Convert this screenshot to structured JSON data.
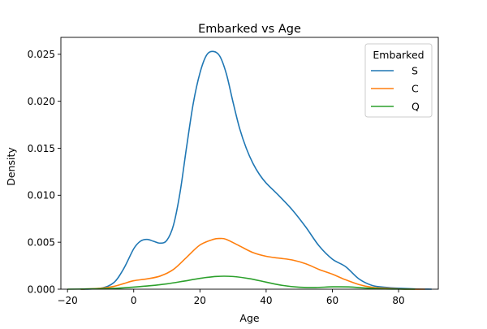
{
  "chart_data": {
    "type": "line",
    "title": "Embarked vs Age",
    "xlabel": "Age",
    "ylabel": "Density",
    "xlim": [
      -22,
      92
    ],
    "ylim": [
      0,
      0.0268
    ],
    "xticks": [
      {
        "value": -20,
        "label": "−20"
      },
      {
        "value": 0,
        "label": "0"
      },
      {
        "value": 20,
        "label": "20"
      },
      {
        "value": 40,
        "label": "40"
      },
      {
        "value": 60,
        "label": "60"
      },
      {
        "value": 80,
        "label": "80"
      }
    ],
    "yticks": [
      {
        "value": 0,
        "label": "0.000"
      },
      {
        "value": 0.005,
        "label": "0.005"
      },
      {
        "value": 0.01,
        "label": "0.010"
      },
      {
        "value": 0.015,
        "label": "0.015"
      },
      {
        "value": 0.02,
        "label": "0.020"
      },
      {
        "value": 0.025,
        "label": "0.025"
      }
    ],
    "grid": false,
    "legend": {
      "title": "Embarked",
      "placement": "top-right"
    },
    "series": [
      {
        "name": "S",
        "color": "#1f77b4",
        "x": [
          -16,
          -10,
          -6,
          -3,
          0,
          2,
          4,
          6,
          8,
          10,
          12,
          14,
          16,
          18,
          20,
          22,
          24,
          26,
          28,
          30,
          32,
          34,
          36,
          38,
          40,
          44,
          48,
          52,
          56,
          60,
          64,
          68,
          72,
          76,
          80,
          85,
          90
        ],
        "y": [
          0,
          0.0001,
          0.0007,
          0.0022,
          0.0043,
          0.0051,
          0.0053,
          0.0051,
          0.0049,
          0.0052,
          0.0068,
          0.0103,
          0.0152,
          0.0198,
          0.023,
          0.0249,
          0.0253,
          0.0248,
          0.0229,
          0.0199,
          0.0171,
          0.015,
          0.0134,
          0.0122,
          0.0113,
          0.0099,
          0.0084,
          0.0066,
          0.0046,
          0.0032,
          0.0024,
          0.0011,
          0.0004,
          0.0002,
          0.0001,
          3e-05,
          0
        ]
      },
      {
        "name": "C",
        "color": "#ff7f0e",
        "x": [
          -16,
          -10,
          -6,
          -3,
          0,
          4,
          8,
          12,
          16,
          20,
          24,
          26,
          28,
          32,
          36,
          40,
          44,
          48,
          52,
          56,
          60,
          64,
          68,
          72,
          76,
          80,
          84,
          88
        ],
        "y": [
          0,
          0.0001,
          0.0003,
          0.0006,
          0.0009,
          0.0011,
          0.0014,
          0.0021,
          0.0034,
          0.0047,
          0.0053,
          0.0054,
          0.0053,
          0.0046,
          0.0039,
          0.0035,
          0.0033,
          0.0031,
          0.0027,
          0.0021,
          0.0016,
          0.001,
          0.0005,
          0.0002,
          0.0001,
          3e-05,
          0,
          0
        ]
      },
      {
        "name": "Q",
        "color": "#2ca02c",
        "x": [
          -20,
          -15,
          -10,
          -5,
          0,
          5,
          10,
          15,
          20,
          25,
          30,
          35,
          40,
          45,
          50,
          55,
          60,
          65,
          70,
          75,
          80,
          85
        ],
        "y": [
          0,
          2e-05,
          5e-05,
          0.0001,
          0.00022,
          0.00037,
          0.00057,
          0.00085,
          0.00115,
          0.00136,
          0.00135,
          0.00112,
          0.00075,
          0.0004,
          0.00021,
          0.00018,
          0.00025,
          0.00024,
          0.00012,
          4e-05,
          1e-05,
          0
        ]
      }
    ]
  }
}
